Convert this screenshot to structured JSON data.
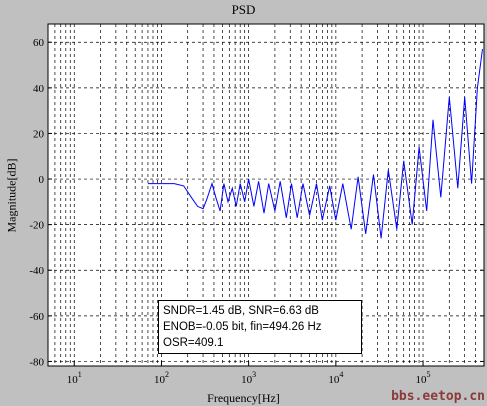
{
  "chart_data": {
    "type": "line",
    "title": "PSD",
    "xlabel": "Frequency[Hz]",
    "ylabel": "Magnitude[dB]",
    "xscale": "log",
    "xlim": [
      5,
      500000
    ],
    "ylim": [
      -82,
      68
    ],
    "grid": true,
    "x_ticks": [
      {
        "value": 10,
        "base": "10",
        "exp": "1"
      },
      {
        "value": 100,
        "base": "10",
        "exp": "2"
      },
      {
        "value": 1000,
        "base": "10",
        "exp": "3"
      },
      {
        "value": 10000,
        "base": "10",
        "exp": "4"
      },
      {
        "value": 100000,
        "base": "10",
        "exp": "5"
      }
    ],
    "y_ticks": [
      -80,
      -60,
      -40,
      -20,
      0,
      20,
      40,
      60
    ],
    "series": [
      {
        "color": "#0000ff",
        "x": [
          70,
          100,
          140,
          180,
          220,
          260,
          300,
          330,
          380,
          420,
          470,
          520,
          580,
          650,
          720,
          800,
          900,
          1000,
          1150,
          1300,
          1500,
          1700,
          2000,
          2300,
          2700,
          3100,
          3600,
          4200,
          5000,
          6000,
          7000,
          8500,
          10000,
          12000,
          15000,
          18000,
          22000,
          27000,
          33000,
          40000,
          50000,
          60000,
          75000,
          90000,
          110000,
          130000,
          160000,
          200000,
          250000,
          300000,
          360000,
          420000,
          480000
        ],
        "y": [
          -2,
          -2,
          -2,
          -3,
          -8,
          -12,
          -13,
          -9,
          -2,
          -8,
          -14,
          -2,
          -10,
          -4,
          -12,
          -2,
          -10,
          0,
          -12,
          -1,
          -15,
          -2,
          -14,
          -1,
          -17,
          -2,
          -17,
          -2,
          -16,
          -2,
          -18,
          -3,
          -18,
          -2,
          -22,
          1,
          -24,
          2,
          -26,
          4,
          -22,
          8,
          -20,
          14,
          -14,
          26,
          -8,
          36,
          -4,
          36,
          -2,
          40,
          57
        ]
      }
    ],
    "annotations": [
      "SNDR=1.45 dB, SNR=6.63 dB",
      "ENOB=-0.05 bit, fin=494.26 Hz",
      "OSR=409.1"
    ]
  },
  "watermark": "bbs.eetop.cn"
}
